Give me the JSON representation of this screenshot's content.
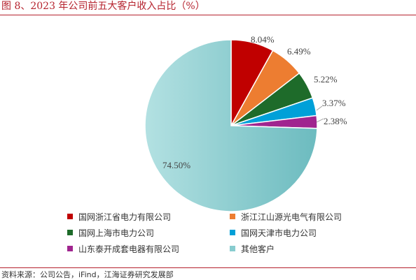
{
  "title": "图 8、2023 年公司前五大客户收入占比（%）",
  "source": "资料来源：公司公告，iFind，江海证券研究发展部",
  "chart_data": {
    "type": "pie",
    "title": "图 8、2023 年公司前五大客户收入占比（%）",
    "slices": [
      {
        "name": "国网浙江省电力有限公司",
        "value": 8.04,
        "label": "8.04%",
        "color": "#c00000"
      },
      {
        "name": "浙江江山源光电气有限公司",
        "value": 6.49,
        "label": "6.49%",
        "color": "#ed7d31"
      },
      {
        "name": "国网上海市电力公司",
        "value": 5.22,
        "label": "5.22%",
        "color": "#1e6b2a"
      },
      {
        "name": "国网天津市电力公司",
        "value": 3.37,
        "label": "3.37%",
        "color": "#00a0d8"
      },
      {
        "name": "山东泰开成套电器有限公司",
        "value": 2.38,
        "label": "2.38%",
        "color": "#a0258f"
      },
      {
        "name": "其他客户",
        "value": 74.5,
        "label": "74.50%",
        "color": "#88cccf"
      }
    ],
    "legend_position": "bottom",
    "start_angle_deg": 0,
    "direction": "clockwise"
  }
}
